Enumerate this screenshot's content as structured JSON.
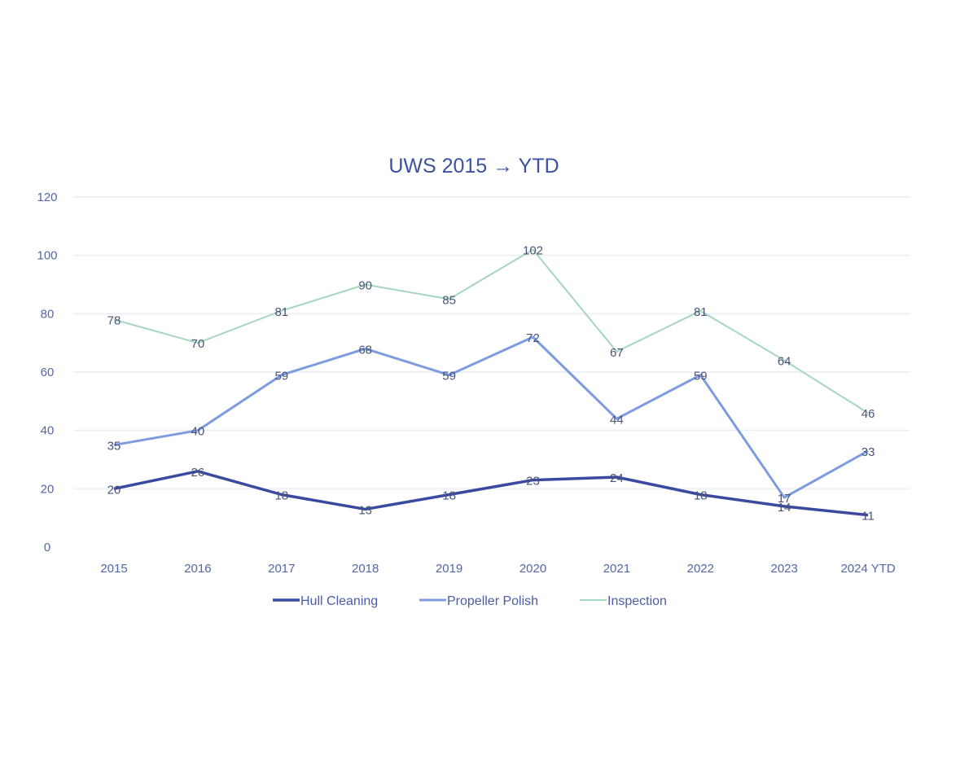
{
  "chart_data": {
    "type": "line",
    "title": "UWS 2015 → YTD",
    "xlabel": "",
    "ylabel": "",
    "ylim": [
      0,
      120
    ],
    "yticks": [
      0,
      20,
      40,
      60,
      80,
      100,
      120
    ],
    "grid": true,
    "legend_position": "bottom",
    "categories": [
      "2015",
      "2016",
      "2017",
      "2018",
      "2019",
      "2020",
      "2021",
      "2022",
      "2023",
      "2024 YTD"
    ],
    "series": [
      {
        "name": "Hull Cleaning",
        "color": "#3b4aa0",
        "values": [
          20,
          26,
          18,
          13,
          18,
          23,
          24,
          18,
          14,
          11
        ]
      },
      {
        "name": "Propeller Polish",
        "color": "#7e9be0",
        "values": [
          35,
          40,
          59,
          68,
          59,
          72,
          44,
          59,
          17,
          33
        ]
      },
      {
        "name": "Inspection",
        "color": "#a6d6bd",
        "values": [
          78,
          70,
          81,
          90,
          85,
          102,
          67,
          81,
          64,
          46
        ]
      }
    ]
  }
}
